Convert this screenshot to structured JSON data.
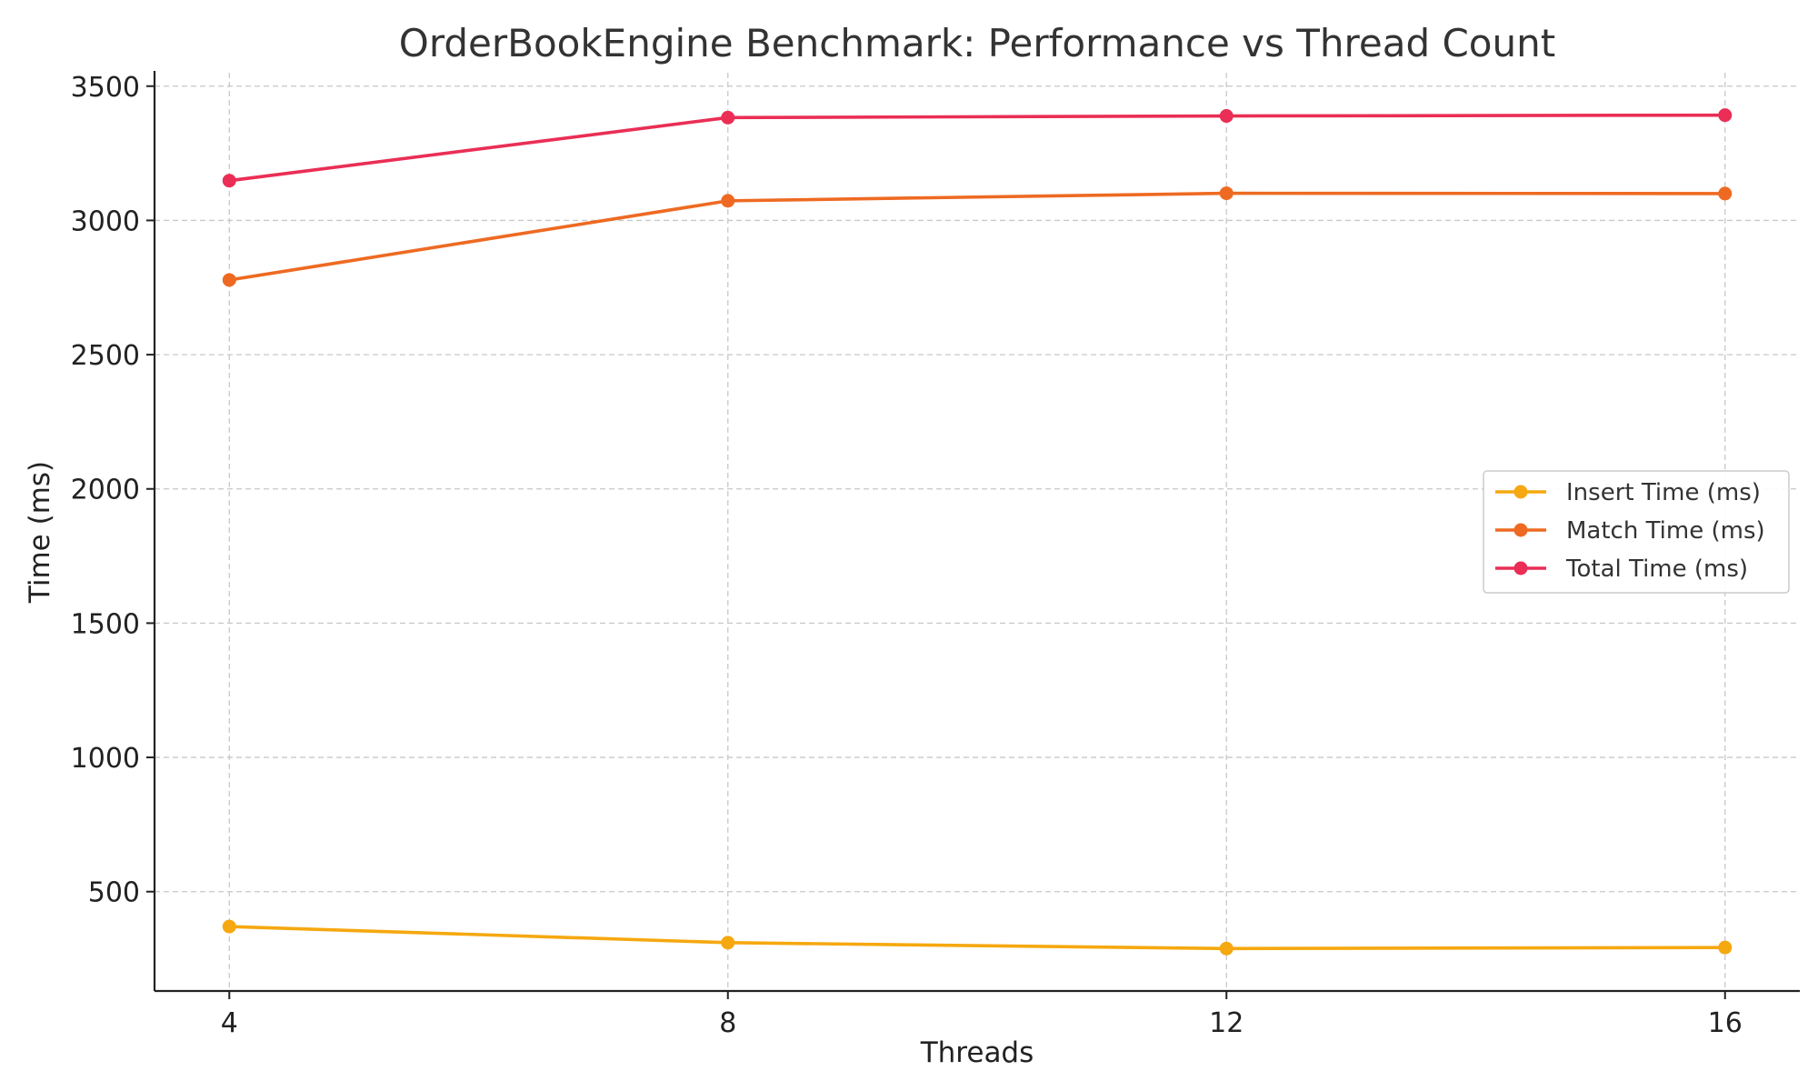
{
  "chart_data": {
    "type": "line",
    "title": "OrderBookEngine Benchmark: Performance vs Thread Count",
    "xlabel": "Threads",
    "ylabel": "Time (ms)",
    "x": [
      4,
      8,
      12,
      16
    ],
    "x_tick_labels": [
      "4",
      "8",
      "12",
      "16"
    ],
    "xlim": [
      3.4,
      16.6
    ],
    "ylim": [
      130,
      3550
    ],
    "y_ticks": [
      500,
      1000,
      1500,
      2000,
      2500,
      3000,
      3500
    ],
    "y_tick_labels": [
      "500",
      "1000",
      "1500",
      "2000",
      "2500",
      "3000",
      "3500"
    ],
    "grid": true,
    "legend_position": "center-right",
    "series": [
      {
        "name": "Insert Time (ms)",
        "color": "#F5A80F",
        "marker": "circle",
        "values": [
          370,
          310,
          288,
          292
        ]
      },
      {
        "name": "Match Time (ms)",
        "color": "#EE6A22",
        "marker": "circle",
        "values": [
          2778,
          3073,
          3101,
          3100
        ]
      },
      {
        "name": "Total Time (ms)",
        "color": "#EA2E55",
        "marker": "circle",
        "values": [
          3148,
          3383,
          3389,
          3392
        ]
      }
    ]
  }
}
